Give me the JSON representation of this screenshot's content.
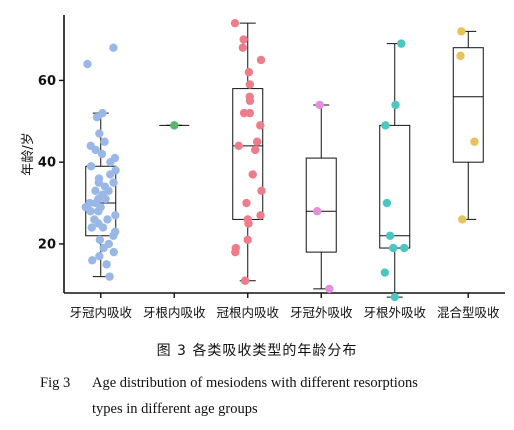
{
  "chart_data": {
    "type": "box",
    "title": "",
    "xlabel": "",
    "ylabel": "年龄/岁",
    "ylim": [
      8,
      76
    ],
    "yticks": [
      20,
      40,
      60
    ],
    "grid": false,
    "legend": "none",
    "categories": [
      "牙冠内吸收",
      "牙根内吸收",
      "冠根内吸收",
      "牙冠外吸收",
      "牙根外吸收",
      "混合型吸收"
    ],
    "series": [
      {
        "color": "#9ab8e6",
        "box": {
          "min": 12,
          "q1": 22,
          "median": 30,
          "q3": 39,
          "max": 52
        },
        "points": [
          68,
          64,
          52,
          51,
          47,
          45,
          44,
          43,
          42,
          41,
          40,
          39,
          38,
          37,
          36,
          35,
          35,
          34,
          33,
          33,
          32,
          31,
          31,
          30,
          30,
          29,
          29,
          28,
          28,
          27,
          26,
          26,
          25,
          24,
          24,
          23,
          22,
          21,
          20,
          19,
          18,
          17,
          16,
          15,
          12
        ]
      },
      {
        "color": "#56b86a",
        "box": {
          "min": 49,
          "q1": 49,
          "median": 49,
          "q3": 49,
          "max": 49
        },
        "points": [
          49
        ]
      },
      {
        "color": "#ee7d8b",
        "box": {
          "min": 11,
          "q1": 26,
          "median": 44,
          "q3": 58,
          "max": 74
        },
        "points": [
          74,
          70,
          68,
          65,
          62,
          59,
          56,
          55,
          52,
          52,
          49,
          45,
          44,
          43,
          37,
          33,
          30,
          27,
          26,
          25,
          21,
          19,
          18,
          11
        ]
      },
      {
        "color": "#e58fda",
        "box": {
          "min": 9,
          "q1": 18,
          "median": 28,
          "q3": 41,
          "max": 54
        },
        "points": [
          54,
          28,
          9
        ]
      },
      {
        "color": "#4cc7c0",
        "box": {
          "min": 7,
          "q1": 19,
          "median": 22,
          "q3": 49,
          "max": 69
        },
        "points": [
          69,
          54,
          49,
          30,
          22,
          19,
          19,
          13,
          7
        ]
      },
      {
        "color": "#e8c25a",
        "box": {
          "min": 26,
          "q1": 40,
          "median": 56,
          "q3": 68,
          "max": 72
        },
        "points": [
          72,
          66,
          45,
          26
        ]
      }
    ]
  },
  "caption": {
    "cn": "图 3 各类吸收类型的年龄分布",
    "en_label": "Fig 3",
    "en_line1": "Age distribution of mesiodens with different resorptions",
    "en_line2": "types in different age groups"
  }
}
